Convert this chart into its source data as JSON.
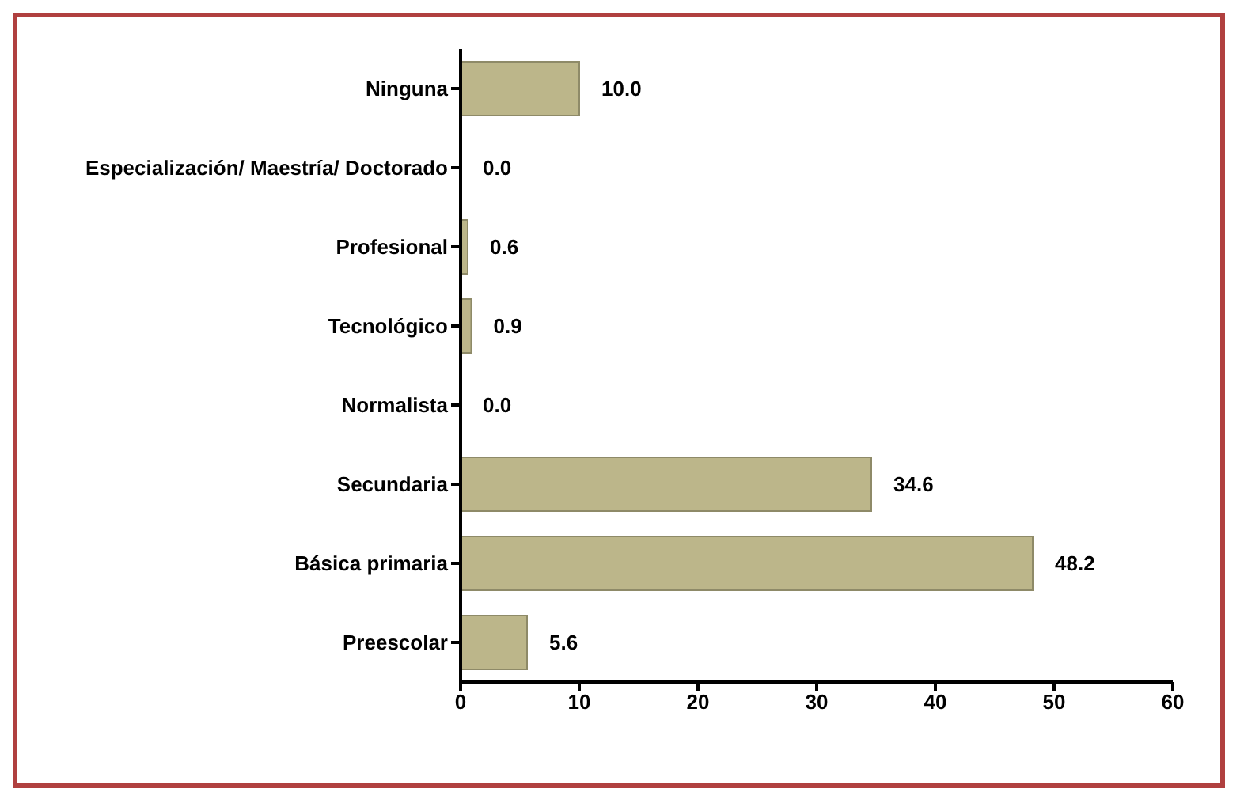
{
  "chart_data": {
    "type": "bar",
    "orientation": "horizontal",
    "categories": [
      "Ninguna",
      "Especialización/ Maestría/ Doctorado",
      "Profesional",
      "Tecnológico",
      "Normalista",
      "Secundaria",
      "Básica primaria",
      "Preescolar"
    ],
    "values": [
      10.0,
      0.0,
      0.6,
      0.9,
      0.0,
      34.6,
      48.2,
      5.6
    ],
    "value_labels": [
      "10.0",
      "0.0",
      "0.6",
      "0.9",
      "0.0",
      "34.6",
      "48.2",
      "5.6"
    ],
    "color": "#bcb68a",
    "xlim": [
      0,
      60
    ],
    "xticks": [
      0,
      10,
      20,
      30,
      40,
      50,
      60
    ],
    "grid": false,
    "legend": false
  }
}
